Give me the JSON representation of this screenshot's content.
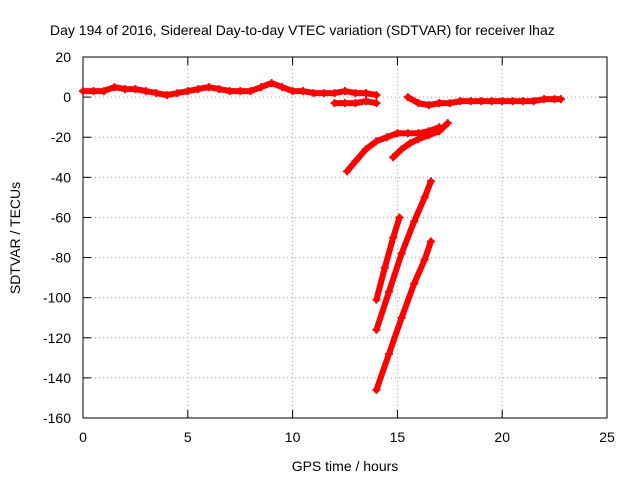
{
  "chart_data": {
    "type": "scatter",
    "title": "Day 194 of 2016, Sidereal Day-to-day VTEC variation (SDTVAR) for receiver lhaz",
    "xlabel": "GPS time / hours",
    "ylabel": "SDTVAR / TECUs",
    "xlim": [
      0,
      25
    ],
    "ylim": [
      -160,
      20
    ],
    "xticks": [
      0,
      5,
      10,
      15,
      20,
      25
    ],
    "yticks": [
      -160,
      -140,
      -120,
      -100,
      -80,
      -60,
      -40,
      -20,
      0,
      20
    ],
    "grid": true,
    "series_color": "#ff0000",
    "series": [
      {
        "x": [
          0,
          0.5,
          1.0,
          1.5,
          2.0,
          2.5,
          3.0,
          3.5,
          4.0,
          4.5,
          5.0,
          5.5,
          6.0,
          6.5,
          7.0,
          7.5,
          8.0,
          8.5,
          9.0,
          9.5,
          10.0,
          10.5,
          11.0,
          11.5,
          12.0,
          12.5,
          13.0,
          13.5,
          14.0
        ],
        "y": [
          3,
          3,
          3,
          5,
          4,
          4,
          3,
          2,
          1,
          2,
          3,
          4,
          5,
          4,
          3,
          3,
          3,
          5,
          7,
          5,
          3,
          3,
          2,
          2,
          2,
          3,
          2,
          2,
          1
        ]
      },
      {
        "x": [
          12.0,
          12.5,
          13.0,
          13.5,
          14.0
        ],
        "y": [
          -3,
          -3,
          -3,
          -2,
          -3
        ]
      },
      {
        "x": [
          15.5,
          16.0,
          16.5,
          17.0
        ],
        "y": [
          0,
          -3,
          -4,
          -3
        ]
      },
      {
        "x": [
          17.0,
          17.5,
          18.0,
          18.5,
          19.0,
          19.5,
          20.0,
          20.5,
          21.0,
          21.5,
          22.0,
          22.5,
          22.8
        ],
        "y": [
          -3,
          -3,
          -2,
          -2,
          -2,
          -2,
          -2,
          -2,
          -2,
          -2,
          -1,
          -1,
          -1
        ]
      },
      {
        "x": [
          12.6,
          13.0,
          13.5,
          14.0,
          14.5,
          15.0,
          15.5,
          16.0,
          16.5,
          17.0
        ],
        "y": [
          -37,
          -32,
          -26,
          -22,
          -20,
          -18,
          -18,
          -18,
          -17,
          -15
        ]
      },
      {
        "x": [
          14.8,
          15.2,
          15.6,
          16.0,
          16.5,
          17.0,
          17.4
        ],
        "y": [
          -30,
          -26,
          -23,
          -21,
          -19,
          -17,
          -13
        ]
      },
      {
        "x": [
          14.0,
          14.4,
          14.8,
          15.1
        ],
        "y": [
          -101,
          -85,
          -70,
          -60
        ]
      },
      {
        "x": [
          14.0,
          14.6,
          15.2,
          15.8,
          16.3,
          16.6
        ],
        "y": [
          -116,
          -97,
          -78,
          -62,
          -50,
          -42
        ]
      },
      {
        "x": [
          14.0,
          14.6,
          15.2,
          15.8,
          16.3,
          16.6
        ],
        "y": [
          -146,
          -128,
          -110,
          -93,
          -81,
          -72
        ]
      }
    ]
  }
}
